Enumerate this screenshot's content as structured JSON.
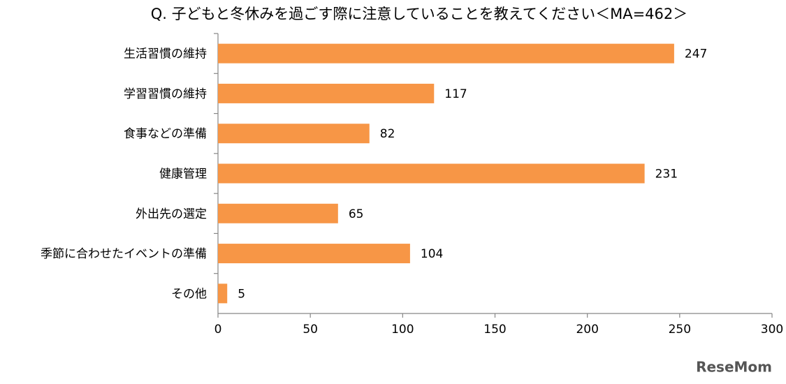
{
  "chart_data": {
    "type": "barh",
    "title": "Q. 子どもと冬休みを過ごす際に注意していることを教えてください＜MA=462＞",
    "categories": [
      "生活習慣の維持",
      "学習習慣の維持",
      "食事などの準備",
      "健康管理",
      "外出先の選定",
      "季節に合わせたイベントの準備",
      "その他"
    ],
    "values": [
      247,
      117,
      82,
      231,
      65,
      104,
      5
    ],
    "color": "#f79646",
    "xlim": [
      0,
      300
    ],
    "xticks": [
      0,
      50,
      100,
      150,
      200,
      250,
      300
    ],
    "grid": false
  },
  "watermark": "ReseMom"
}
